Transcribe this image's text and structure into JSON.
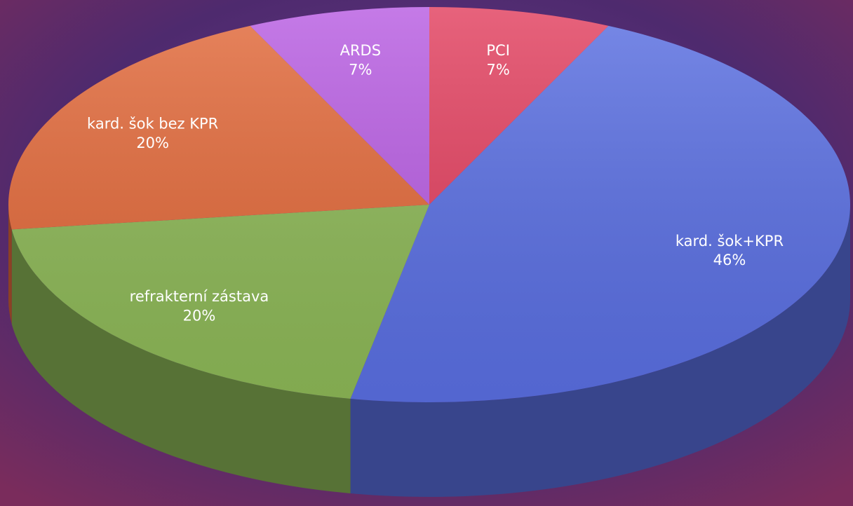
{
  "chart_data": {
    "type": "pie",
    "categories": [
      "PCI",
      "kard. šok+KPR",
      "refrakterní zástava",
      "kard. šok bez KPR",
      "ARDS"
    ],
    "values": [
      7,
      46,
      20,
      20,
      7
    ],
    "value_labels": [
      "7%",
      "46%",
      "20%",
      "20%",
      "7%"
    ],
    "colors": [
      "#e2405f",
      "#5a6fe2",
      "#8db857",
      "#e2693a",
      "#b85de2"
    ]
  }
}
